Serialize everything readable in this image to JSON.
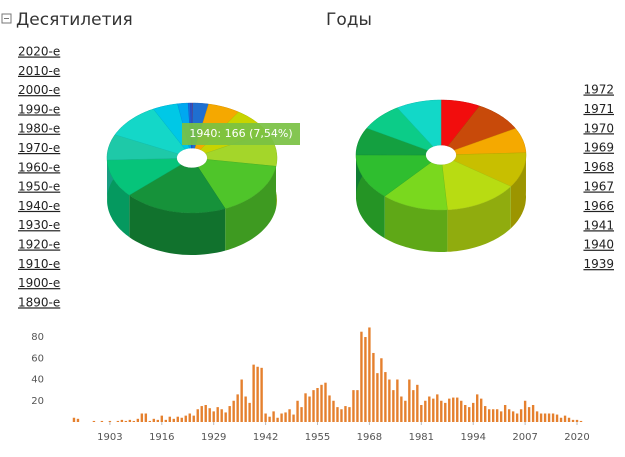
{
  "decades_header": "Десятилетия",
  "years_header": "Годы",
  "decades": [
    "2020-е",
    "2010-е",
    "2000-е",
    "1990-е",
    "1980-е",
    "1970-е",
    "1960-е",
    "1950-е",
    "1940-е",
    "1930-е",
    "1920-е",
    "1910-е",
    "1900-е",
    "1890-е"
  ],
  "years": [
    "1972",
    "1971",
    "1970",
    "1969",
    "1968",
    "1967",
    "1966",
    "1941",
    "1940",
    "1939"
  ],
  "tooltip": "1940: 166 (7,54%)",
  "chart_data": [
    {
      "type": "pie",
      "categories": [
        "2020-е",
        "2010-е",
        "2000-е",
        "1990-е",
        "1980-е",
        "1970-е",
        "1960-е",
        "1950-е",
        "1940-е",
        "1930-е",
        "1920-е",
        "1910-е",
        "1900-е",
        "1890-е"
      ],
      "values": [
        3,
        66,
        134,
        177,
        223,
        357,
        431,
        247,
        166,
        232,
        105,
        44,
        9,
        7
      ],
      "colors": [
        "#e41a1c",
        "#1f6fd0",
        "#f5a800",
        "#c8d400",
        "#a4d62a",
        "#4fc52a",
        "#16923a",
        "#06c47a",
        "#1ec9a8",
        "#14d7c8",
        "#00c8e6",
        "#00a8f0",
        "#1a6be0",
        "#3050c8"
      ]
    },
    {
      "type": "pie",
      "categories": [
        "1972",
        "1971",
        "1970",
        "1969",
        "1968",
        "1967",
        "1966",
        "1941",
        "1940",
        "1939"
      ],
      "values": [
        47,
        60,
        46,
        65,
        89,
        80,
        85,
        51,
        52,
        54
      ],
      "colors": [
        "#f20d0d",
        "#c84a0a",
        "#f5a900",
        "#c8bf00",
        "#b8dc12",
        "#7ad81e",
        "#2fbe2f",
        "#14a040",
        "#0ccc88",
        "#12d8c8"
      ]
    },
    {
      "type": "bar",
      "x": [
        1894,
        1895,
        1896,
        1897,
        1898,
        1899,
        1900,
        1901,
        1902,
        1903,
        1904,
        1905,
        1906,
        1907,
        1908,
        1909,
        1910,
        1911,
        1912,
        1913,
        1914,
        1915,
        1916,
        1917,
        1918,
        1919,
        1920,
        1921,
        1922,
        1923,
        1924,
        1925,
        1926,
        1927,
        1928,
        1929,
        1930,
        1931,
        1932,
        1933,
        1934,
        1935,
        1936,
        1937,
        1938,
        1939,
        1940,
        1941,
        1942,
        1943,
        1944,
        1945,
        1946,
        1947,
        1948,
        1949,
        1950,
        1951,
        1952,
        1953,
        1954,
        1955,
        1956,
        1957,
        1958,
        1959,
        1960,
        1961,
        1962,
        1963,
        1964,
        1965,
        1966,
        1967,
        1968,
        1969,
        1970,
        1971,
        1972,
        1973,
        1974,
        1975,
        1976,
        1977,
        1978,
        1979,
        1980,
        1981,
        1982,
        1983,
        1984,
        1985,
        1986,
        1987,
        1988,
        1989,
        1990,
        1991,
        1992,
        1993,
        1994,
        1995,
        1996,
        1997,
        1998,
        1999,
        2000,
        2001,
        2002,
        2003,
        2004,
        2005,
        2006,
        2007,
        2008,
        2009,
        2010,
        2011,
        2012,
        2013,
        2014,
        2015,
        2016,
        2017,
        2018,
        2019,
        2020,
        2021
      ],
      "values": [
        4,
        3,
        0,
        0,
        0,
        1,
        0,
        1,
        0,
        1,
        0,
        1,
        2,
        1,
        2,
        1,
        3,
        8,
        8,
        1,
        3,
        2,
        6,
        2,
        5,
        3,
        5,
        4,
        6,
        8,
        6,
        12,
        15,
        16,
        13,
        10,
        14,
        12,
        9,
        15,
        20,
        26,
        40,
        24,
        18,
        54,
        52,
        51,
        8,
        5,
        10,
        4,
        8,
        9,
        12,
        7,
        20,
        14,
        27,
        24,
        30,
        32,
        35,
        37,
        25,
        20,
        14,
        12,
        15,
        14,
        30,
        30,
        85,
        80,
        89,
        65,
        46,
        60,
        47,
        40,
        30,
        40,
        24,
        20,
        40,
        30,
        35,
        16,
        20,
        24,
        22,
        26,
        20,
        18,
        22,
        23,
        23,
        20,
        16,
        14,
        18,
        26,
        22,
        15,
        12,
        12,
        12,
        10,
        16,
        12,
        10,
        8,
        12,
        20,
        14,
        16,
        10,
        8,
        8,
        8,
        8,
        7,
        4,
        6,
        4,
        2,
        2,
        1
      ],
      "color": "#e5802e",
      "xlim": [
        1890,
        2023
      ],
      "ylim": [
        0,
        90
      ],
      "xticks": [
        1903,
        1916,
        1929,
        1942,
        1955,
        1968,
        1981,
        1994,
        2007,
        2020
      ],
      "yticks": [
        20,
        40,
        60,
        80
      ]
    }
  ]
}
